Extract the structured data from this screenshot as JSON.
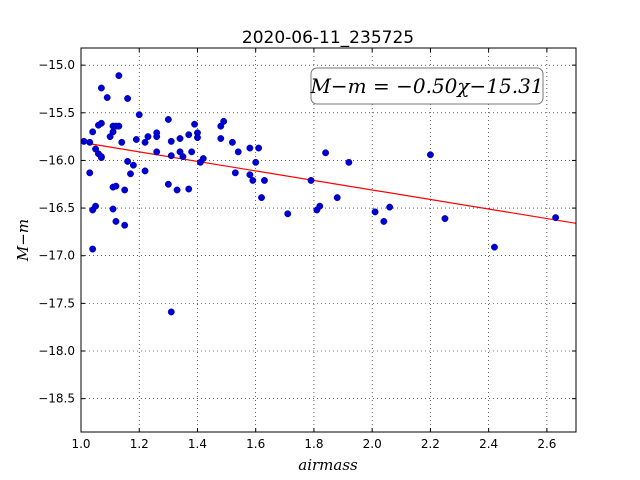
{
  "chart_data": {
    "type": "scatter",
    "title": "2020-06-11_235725",
    "xlabel": "airmass",
    "ylabel": "M−m",
    "xlim": [
      1.0,
      2.7
    ],
    "ylim": [
      -18.85,
      -14.82
    ],
    "y_inverted": true,
    "grid": true,
    "x_ticks": [
      1.0,
      1.2,
      1.4,
      1.6,
      1.8,
      2.0,
      2.2,
      2.4,
      2.6
    ],
    "x_tick_labels": [
      "1.0",
      "1.2",
      "1.4",
      "1.6",
      "1.8",
      "2.0",
      "2.2",
      "2.4",
      "2.6"
    ],
    "y_ticks": [
      -15.0,
      -15.5,
      -16.0,
      -16.5,
      -17.0,
      -17.5,
      -18.0,
      -18.5
    ],
    "y_tick_labels": [
      "−15.0",
      "−15.5",
      "−16.0",
      "−16.5",
      "−17.0",
      "−17.5",
      "−18.0",
      "−18.5"
    ],
    "annotation": "M−m = −0.50χ−15.31",
    "fit": {
      "slope": -0.5,
      "intercept": -15.31,
      "color": "#ff0000"
    },
    "point_color": "#0000cc",
    "series": [
      {
        "points": [
          [
            1.01,
            -15.8
          ],
          [
            1.03,
            -15.81
          ],
          [
            1.03,
            -16.13
          ],
          [
            1.04,
            -15.7
          ],
          [
            1.04,
            -16.52
          ],
          [
            1.04,
            -16.93
          ],
          [
            1.05,
            -16.48
          ],
          [
            1.05,
            -15.88
          ],
          [
            1.06,
            -15.93
          ],
          [
            1.06,
            -15.63
          ],
          [
            1.07,
            -15.61
          ],
          [
            1.07,
            -15.96
          ],
          [
            1.07,
            -15.97
          ],
          [
            1.07,
            -15.24
          ],
          [
            1.09,
            -15.34
          ],
          [
            1.1,
            -15.75
          ],
          [
            1.11,
            -15.7
          ],
          [
            1.11,
            -15.64
          ],
          [
            1.11,
            -16.28
          ],
          [
            1.11,
            -16.51
          ],
          [
            1.12,
            -15.64
          ],
          [
            1.12,
            -16.64
          ],
          [
            1.12,
            -16.27
          ],
          [
            1.13,
            -15.11
          ],
          [
            1.13,
            -15.64
          ],
          [
            1.14,
            -15.81
          ],
          [
            1.15,
            -16.68
          ],
          [
            1.15,
            -16.31
          ],
          [
            1.16,
            -15.35
          ],
          [
            1.16,
            -16.01
          ],
          [
            1.17,
            -16.14
          ],
          [
            1.18,
            -16.05
          ],
          [
            1.19,
            -15.78
          ],
          [
            1.2,
            -15.52
          ],
          [
            1.22,
            -15.81
          ],
          [
            1.22,
            -16.11
          ],
          [
            1.23,
            -15.75
          ],
          [
            1.26,
            -15.71
          ],
          [
            1.26,
            -15.75
          ],
          [
            1.26,
            -15.91
          ],
          [
            1.3,
            -15.57
          ],
          [
            1.3,
            -16.25
          ],
          [
            1.31,
            -15.8
          ],
          [
            1.31,
            -15.95
          ],
          [
            1.31,
            -17.59
          ],
          [
            1.33,
            -16.31
          ],
          [
            1.34,
            -15.77
          ],
          [
            1.34,
            -15.91
          ],
          [
            1.35,
            -15.96
          ],
          [
            1.37,
            -15.73
          ],
          [
            1.37,
            -16.3
          ],
          [
            1.38,
            -15.91
          ],
          [
            1.39,
            -15.62
          ],
          [
            1.4,
            -15.76
          ],
          [
            1.4,
            -15.71
          ],
          [
            1.41,
            -16.02
          ],
          [
            1.42,
            -15.98
          ],
          [
            1.48,
            -15.64
          ],
          [
            1.48,
            -15.77
          ],
          [
            1.49,
            -15.59
          ],
          [
            1.52,
            -15.81
          ],
          [
            1.53,
            -16.13
          ],
          [
            1.54,
            -15.91
          ],
          [
            1.58,
            -15.87
          ],
          [
            1.58,
            -16.15
          ],
          [
            1.59,
            -16.21
          ],
          [
            1.6,
            -16.02
          ],
          [
            1.61,
            -15.87
          ],
          [
            1.62,
            -16.39
          ],
          [
            1.63,
            -16.21
          ],
          [
            1.71,
            -16.56
          ],
          [
            1.79,
            -16.21
          ],
          [
            1.81,
            -16.52
          ],
          [
            1.82,
            -16.48
          ],
          [
            1.84,
            -15.92
          ],
          [
            1.88,
            -16.39
          ],
          [
            1.92,
            -16.02
          ],
          [
            2.01,
            -16.54
          ],
          [
            2.04,
            -16.64
          ],
          [
            2.06,
            -16.49
          ],
          [
            2.2,
            -15.94
          ],
          [
            2.25,
            -16.61
          ],
          [
            2.42,
            -16.91
          ],
          [
            2.63,
            -16.6
          ]
        ]
      }
    ]
  }
}
